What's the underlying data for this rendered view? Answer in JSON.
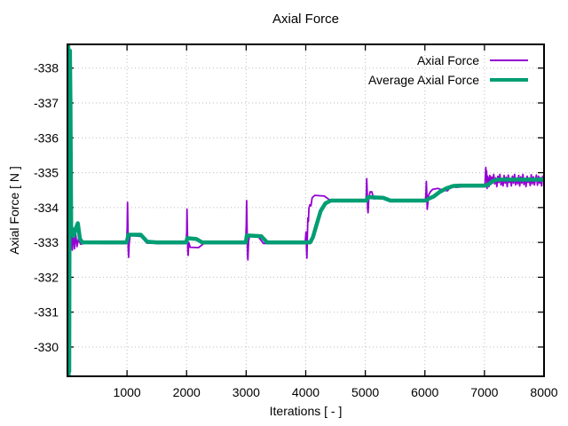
{
  "title": "Axial Force",
  "chart_data": {
    "type": "line",
    "title": "Axial Force",
    "xlabel": "Iterations [ - ]",
    "ylabel": "Axial Force [ N ]",
    "x_ticks": [
      1000,
      2000,
      3000,
      4000,
      5000,
      6000,
      7000,
      8000
    ],
    "y_ticks": [
      -338,
      -337,
      -336,
      -335,
      -334,
      -333,
      -332,
      -331,
      -330
    ],
    "xlim": [
      0,
      8000
    ],
    "ylim": [
      -338.68,
      -329.16
    ],
    "y_axis_reversed": true,
    "grid": "dotted",
    "grid_color": "#bdbdbd",
    "axis_color": "#000000",
    "background_color": "#ffffff",
    "legend_position": "top-right-inside",
    "series": [
      {
        "name": "Axial Force",
        "color": "#9400d3",
        "line_width": 1.8,
        "points": [
          [
            2,
            -333.2
          ],
          [
            4,
            -338.68
          ],
          [
            8,
            -338.68
          ],
          [
            12,
            -334.5
          ],
          [
            16,
            -330.2
          ],
          [
            20,
            -329.9
          ],
          [
            26,
            -333.6
          ],
          [
            32,
            -332.6
          ],
          [
            40,
            -333.8
          ],
          [
            52,
            -332.7
          ],
          [
            66,
            -333.5
          ],
          [
            82,
            -332.78
          ],
          [
            100,
            -333.4
          ],
          [
            118,
            -332.82
          ],
          [
            138,
            -333.25
          ],
          [
            160,
            -332.88
          ],
          [
            185,
            -333.1
          ],
          [
            220,
            -332.95
          ],
          [
            300,
            -332.98
          ],
          [
            600,
            -332.97
          ],
          [
            990,
            -332.97
          ],
          [
            1002,
            -333.4
          ],
          [
            1008,
            -334.15
          ],
          [
            1014,
            -333.5
          ],
          [
            1020,
            -332.8
          ],
          [
            1026,
            -332.57
          ],
          [
            1036,
            -332.95
          ],
          [
            1050,
            -333.18
          ],
          [
            1080,
            -333.2
          ],
          [
            1240,
            -333.17
          ],
          [
            1330,
            -332.98
          ],
          [
            1500,
            -332.97
          ],
          [
            1990,
            -332.97
          ],
          [
            2002,
            -333.3
          ],
          [
            2007,
            -333.95
          ],
          [
            2014,
            -333.3
          ],
          [
            2020,
            -332.75
          ],
          [
            2026,
            -332.63
          ],
          [
            2036,
            -333.0
          ],
          [
            2060,
            -332.86
          ],
          [
            2200,
            -332.85
          ],
          [
            2290,
            -332.97
          ],
          [
            2990,
            -332.97
          ],
          [
            3002,
            -333.5
          ],
          [
            3008,
            -334.2
          ],
          [
            3015,
            -333.4
          ],
          [
            3022,
            -332.65
          ],
          [
            3028,
            -332.5
          ],
          [
            3040,
            -333.05
          ],
          [
            3060,
            -333.2
          ],
          [
            3200,
            -333.17
          ],
          [
            3290,
            -332.97
          ],
          [
            3990,
            -332.97
          ],
          [
            4004,
            -333.3
          ],
          [
            4009,
            -333.1
          ],
          [
            4014,
            -332.8
          ],
          [
            4020,
            -332.55
          ],
          [
            4028,
            -333.25
          ],
          [
            4036,
            -333.7
          ],
          [
            4044,
            -333.6
          ],
          [
            4054,
            -333.98
          ],
          [
            4070,
            -334.08
          ],
          [
            4088,
            -334.05
          ],
          [
            4108,
            -334.28
          ],
          [
            4150,
            -334.35
          ],
          [
            4310,
            -334.33
          ],
          [
            4400,
            -334.22
          ],
          [
            4520,
            -334.2
          ],
          [
            5010,
            -334.2
          ],
          [
            5018,
            -334.4
          ],
          [
            5024,
            -334.83
          ],
          [
            5032,
            -334.4
          ],
          [
            5040,
            -333.95
          ],
          [
            5046,
            -333.85
          ],
          [
            5058,
            -334.25
          ],
          [
            5080,
            -334.45
          ],
          [
            5110,
            -334.45
          ],
          [
            5140,
            -334.25
          ],
          [
            5300,
            -334.28
          ],
          [
            5400,
            -334.2
          ],
          [
            6010,
            -334.2
          ],
          [
            6018,
            -334.45
          ],
          [
            6024,
            -334.75
          ],
          [
            6032,
            -334.4
          ],
          [
            6040,
            -333.95
          ],
          [
            6048,
            -334.1
          ],
          [
            6060,
            -334.35
          ],
          [
            6090,
            -334.45
          ],
          [
            6130,
            -334.52
          ],
          [
            6220,
            -334.55
          ],
          [
            6300,
            -334.5
          ],
          [
            6380,
            -334.48
          ],
          [
            6440,
            -334.62
          ],
          [
            6520,
            -334.58
          ],
          [
            6650,
            -334.6
          ],
          [
            6850,
            -334.6
          ],
          [
            7008,
            -334.6
          ],
          [
            7016,
            -334.9
          ],
          [
            7022,
            -335.15
          ],
          [
            7030,
            -334.85
          ],
          [
            7036,
            -335.05
          ],
          [
            7044,
            -334.55
          ],
          [
            7052,
            -334.9
          ],
          [
            7060,
            -334.85
          ],
          [
            7075,
            -334.6
          ],
          [
            7090,
            -334.92
          ],
          [
            7105,
            -334.66
          ],
          [
            7120,
            -334.88
          ],
          [
            7138,
            -334.7
          ],
          [
            7155,
            -334.95
          ],
          [
            7172,
            -334.68
          ],
          [
            7190,
            -334.85
          ],
          [
            7208,
            -334.6
          ],
          [
            7225,
            -334.9
          ],
          [
            7242,
            -334.72
          ],
          [
            7260,
            -334.95
          ],
          [
            7278,
            -334.65
          ],
          [
            7295,
            -334.82
          ],
          [
            7312,
            -334.62
          ],
          [
            7330,
            -334.92
          ],
          [
            7348,
            -334.7
          ],
          [
            7365,
            -334.87
          ],
          [
            7382,
            -334.6
          ],
          [
            7400,
            -334.93
          ],
          [
            7418,
            -334.72
          ],
          [
            7435,
            -334.83
          ],
          [
            7452,
            -334.62
          ],
          [
            7470,
            -334.9
          ],
          [
            7488,
            -334.7
          ],
          [
            7505,
            -334.95
          ],
          [
            7522,
            -334.65
          ],
          [
            7540,
            -334.85
          ],
          [
            7558,
            -334.68
          ],
          [
            7575,
            -334.92
          ],
          [
            7592,
            -334.62
          ],
          [
            7610,
            -334.88
          ],
          [
            7628,
            -334.7
          ],
          [
            7645,
            -334.95
          ],
          [
            7662,
            -334.66
          ],
          [
            7680,
            -334.84
          ],
          [
            7698,
            -334.6
          ],
          [
            7715,
            -334.9
          ],
          [
            7732,
            -334.72
          ],
          [
            7750,
            -334.85
          ],
          [
            7768,
            -334.63
          ],
          [
            7785,
            -334.94
          ],
          [
            7802,
            -334.68
          ],
          [
            7820,
            -334.88
          ],
          [
            7838,
            -334.65
          ],
          [
            7855,
            -334.8
          ],
          [
            7872,
            -334.93
          ],
          [
            7890,
            -334.64
          ],
          [
            7908,
            -334.9
          ],
          [
            7925,
            -334.7
          ],
          [
            7942,
            -334.86
          ],
          [
            7960,
            -334.62
          ],
          [
            7978,
            -334.9
          ],
          [
            8000,
            -334.78
          ]
        ]
      },
      {
        "name": "Average Axial Force",
        "color": "#009e73",
        "line_width": 4.5,
        "points": [
          [
            2,
            -334.5
          ],
          [
            5,
            -338.68
          ],
          [
            9,
            -329.16
          ],
          [
            14,
            -338.68
          ],
          [
            19,
            -329.16
          ],
          [
            24,
            -331.0
          ],
          [
            30,
            -329.3
          ],
          [
            36,
            -335.0
          ],
          [
            42,
            -338.5
          ],
          [
            50,
            -337.0
          ],
          [
            56,
            -335.2
          ],
          [
            62,
            -333.5
          ],
          [
            70,
            -333.3
          ],
          [
            85,
            -333.25
          ],
          [
            104,
            -333.18
          ],
          [
            140,
            -333.4
          ],
          [
            175,
            -333.55
          ],
          [
            210,
            -333.1
          ],
          [
            250,
            -333.0
          ],
          [
            990,
            -333.0
          ],
          [
            1008,
            -333.1
          ],
          [
            1020,
            -333.22
          ],
          [
            1230,
            -333.22
          ],
          [
            1340,
            -333.02
          ],
          [
            1500,
            -333.0
          ],
          [
            1995,
            -333.0
          ],
          [
            2010,
            -333.12
          ],
          [
            2160,
            -333.1
          ],
          [
            2260,
            -333.0
          ],
          [
            2995,
            -333.0
          ],
          [
            3010,
            -333.2
          ],
          [
            3250,
            -333.18
          ],
          [
            3350,
            -333.0
          ],
          [
            4075,
            -333.0
          ],
          [
            4120,
            -333.15
          ],
          [
            4180,
            -333.5
          ],
          [
            4250,
            -333.9
          ],
          [
            4330,
            -334.12
          ],
          [
            4420,
            -334.2
          ],
          [
            5020,
            -334.2
          ],
          [
            5045,
            -334.3
          ],
          [
            5300,
            -334.28
          ],
          [
            5420,
            -334.2
          ],
          [
            6020,
            -334.2
          ],
          [
            6060,
            -334.25
          ],
          [
            6150,
            -334.32
          ],
          [
            6250,
            -334.45
          ],
          [
            6360,
            -334.55
          ],
          [
            6480,
            -334.62
          ],
          [
            6600,
            -334.63
          ],
          [
            7030,
            -334.63
          ],
          [
            7080,
            -334.68
          ],
          [
            7140,
            -334.76
          ],
          [
            7220,
            -334.8
          ],
          [
            7500,
            -334.8
          ],
          [
            8000,
            -334.8
          ]
        ]
      }
    ]
  }
}
